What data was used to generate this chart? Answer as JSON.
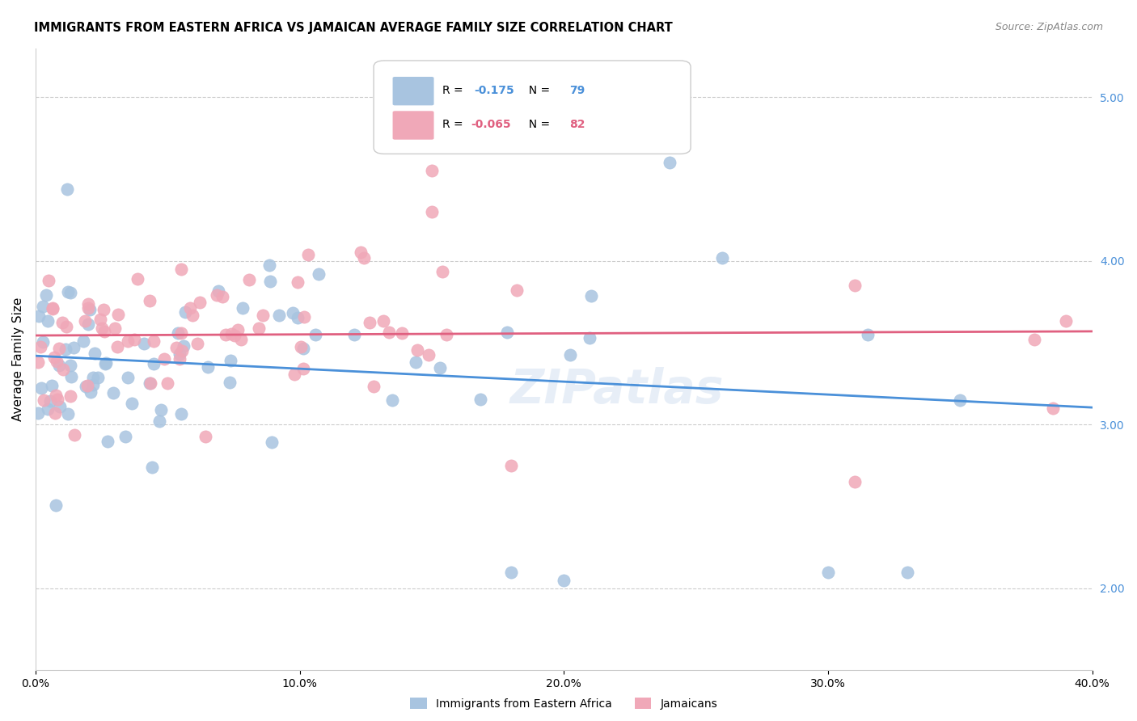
{
  "title": "IMMIGRANTS FROM EASTERN AFRICA VS JAMAICAN AVERAGE FAMILY SIZE CORRELATION CHART",
  "source": "Source: ZipAtlas.com",
  "ylabel": "Average Family Size",
  "xlabel_ticks": [
    "0.0%",
    "10.0%",
    "20.0%",
    "30.0%",
    "40.0%"
  ],
  "xlabel_vals": [
    0.0,
    0.1,
    0.2,
    0.3,
    0.4
  ],
  "right_yticks": [
    2.0,
    3.0,
    4.0,
    5.0
  ],
  "blue_R": -0.175,
  "blue_N": 79,
  "pink_R": -0.065,
  "pink_N": 82,
  "blue_color": "#a8c4e0",
  "pink_color": "#f0a8b8",
  "blue_line_color": "#4a90d9",
  "pink_line_color": "#e06080",
  "legend_blue_label": "Immigrants from Eastern Africa",
  "legend_pink_label": "Jamaicans",
  "watermark": "ZIPatlas",
  "xlim": [
    0.0,
    0.4
  ],
  "ylim": [
    1.5,
    5.3
  ],
  "figsize": [
    14.06,
    8.92
  ],
  "dpi": 100,
  "blue_seed": 42,
  "pink_seed": 137
}
